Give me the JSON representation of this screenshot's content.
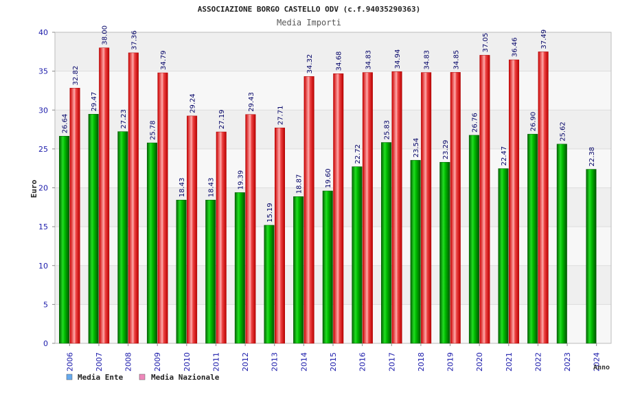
{
  "chart_data": {
    "type": "bar",
    "title": "ASSOCIAZIONE BORGO CASTELLO ODV (c.f.94035290363)",
    "subtitle": "Media Importi",
    "xlabel": "Anno",
    "ylabel": "Euro",
    "ylim": [
      0,
      40
    ],
    "yticks": [
      0,
      5,
      10,
      15,
      20,
      25,
      30,
      35,
      40
    ],
    "categories": [
      "2006",
      "2007",
      "2008",
      "2009",
      "2010",
      "2011",
      "2012",
      "2013",
      "2014",
      "2015",
      "2016",
      "2017",
      "2018",
      "2019",
      "2020",
      "2021",
      "2022",
      "2023",
      "2024"
    ],
    "series": [
      {
        "name": "Media Ente",
        "values": [
          26.64,
          29.47,
          27.23,
          25.78,
          18.43,
          18.43,
          19.39,
          15.19,
          18.87,
          19.6,
          22.72,
          25.83,
          23.54,
          23.29,
          26.76,
          22.47,
          26.9,
          25.62,
          22.38
        ],
        "labels": [
          "26.64",
          "29.47",
          "27.23",
          "25.78",
          "18.43",
          "18.43",
          "19.39",
          "15.19",
          "18.87",
          "19.60",
          "22.72",
          "25.83",
          "23.54",
          "23.29",
          "26.76",
          "22.47",
          "26.90",
          "25.62",
          "22.38"
        ],
        "color": "#00aa00",
        "legend_color": "#66aaee"
      },
      {
        "name": "Media Nazionale",
        "values": [
          32.82,
          38.0,
          37.36,
          34.79,
          29.24,
          27.19,
          29.43,
          27.71,
          34.32,
          34.68,
          34.83,
          34.94,
          34.83,
          34.85,
          37.05,
          36.46,
          37.49,
          null,
          null
        ],
        "labels": [
          "32.82",
          "38.00",
          "37.36",
          "34.79",
          "29.24",
          "27.19",
          "29.43",
          "27.71",
          "34.32",
          "34.68",
          "34.83",
          "34.94",
          "34.83",
          "34.85",
          "37.05",
          "36.46",
          "37.49",
          "",
          ""
        ],
        "color": "#ee1111",
        "legend_color": "#ee88bb"
      }
    ],
    "grid": true,
    "legend_position": "bottom-left"
  }
}
